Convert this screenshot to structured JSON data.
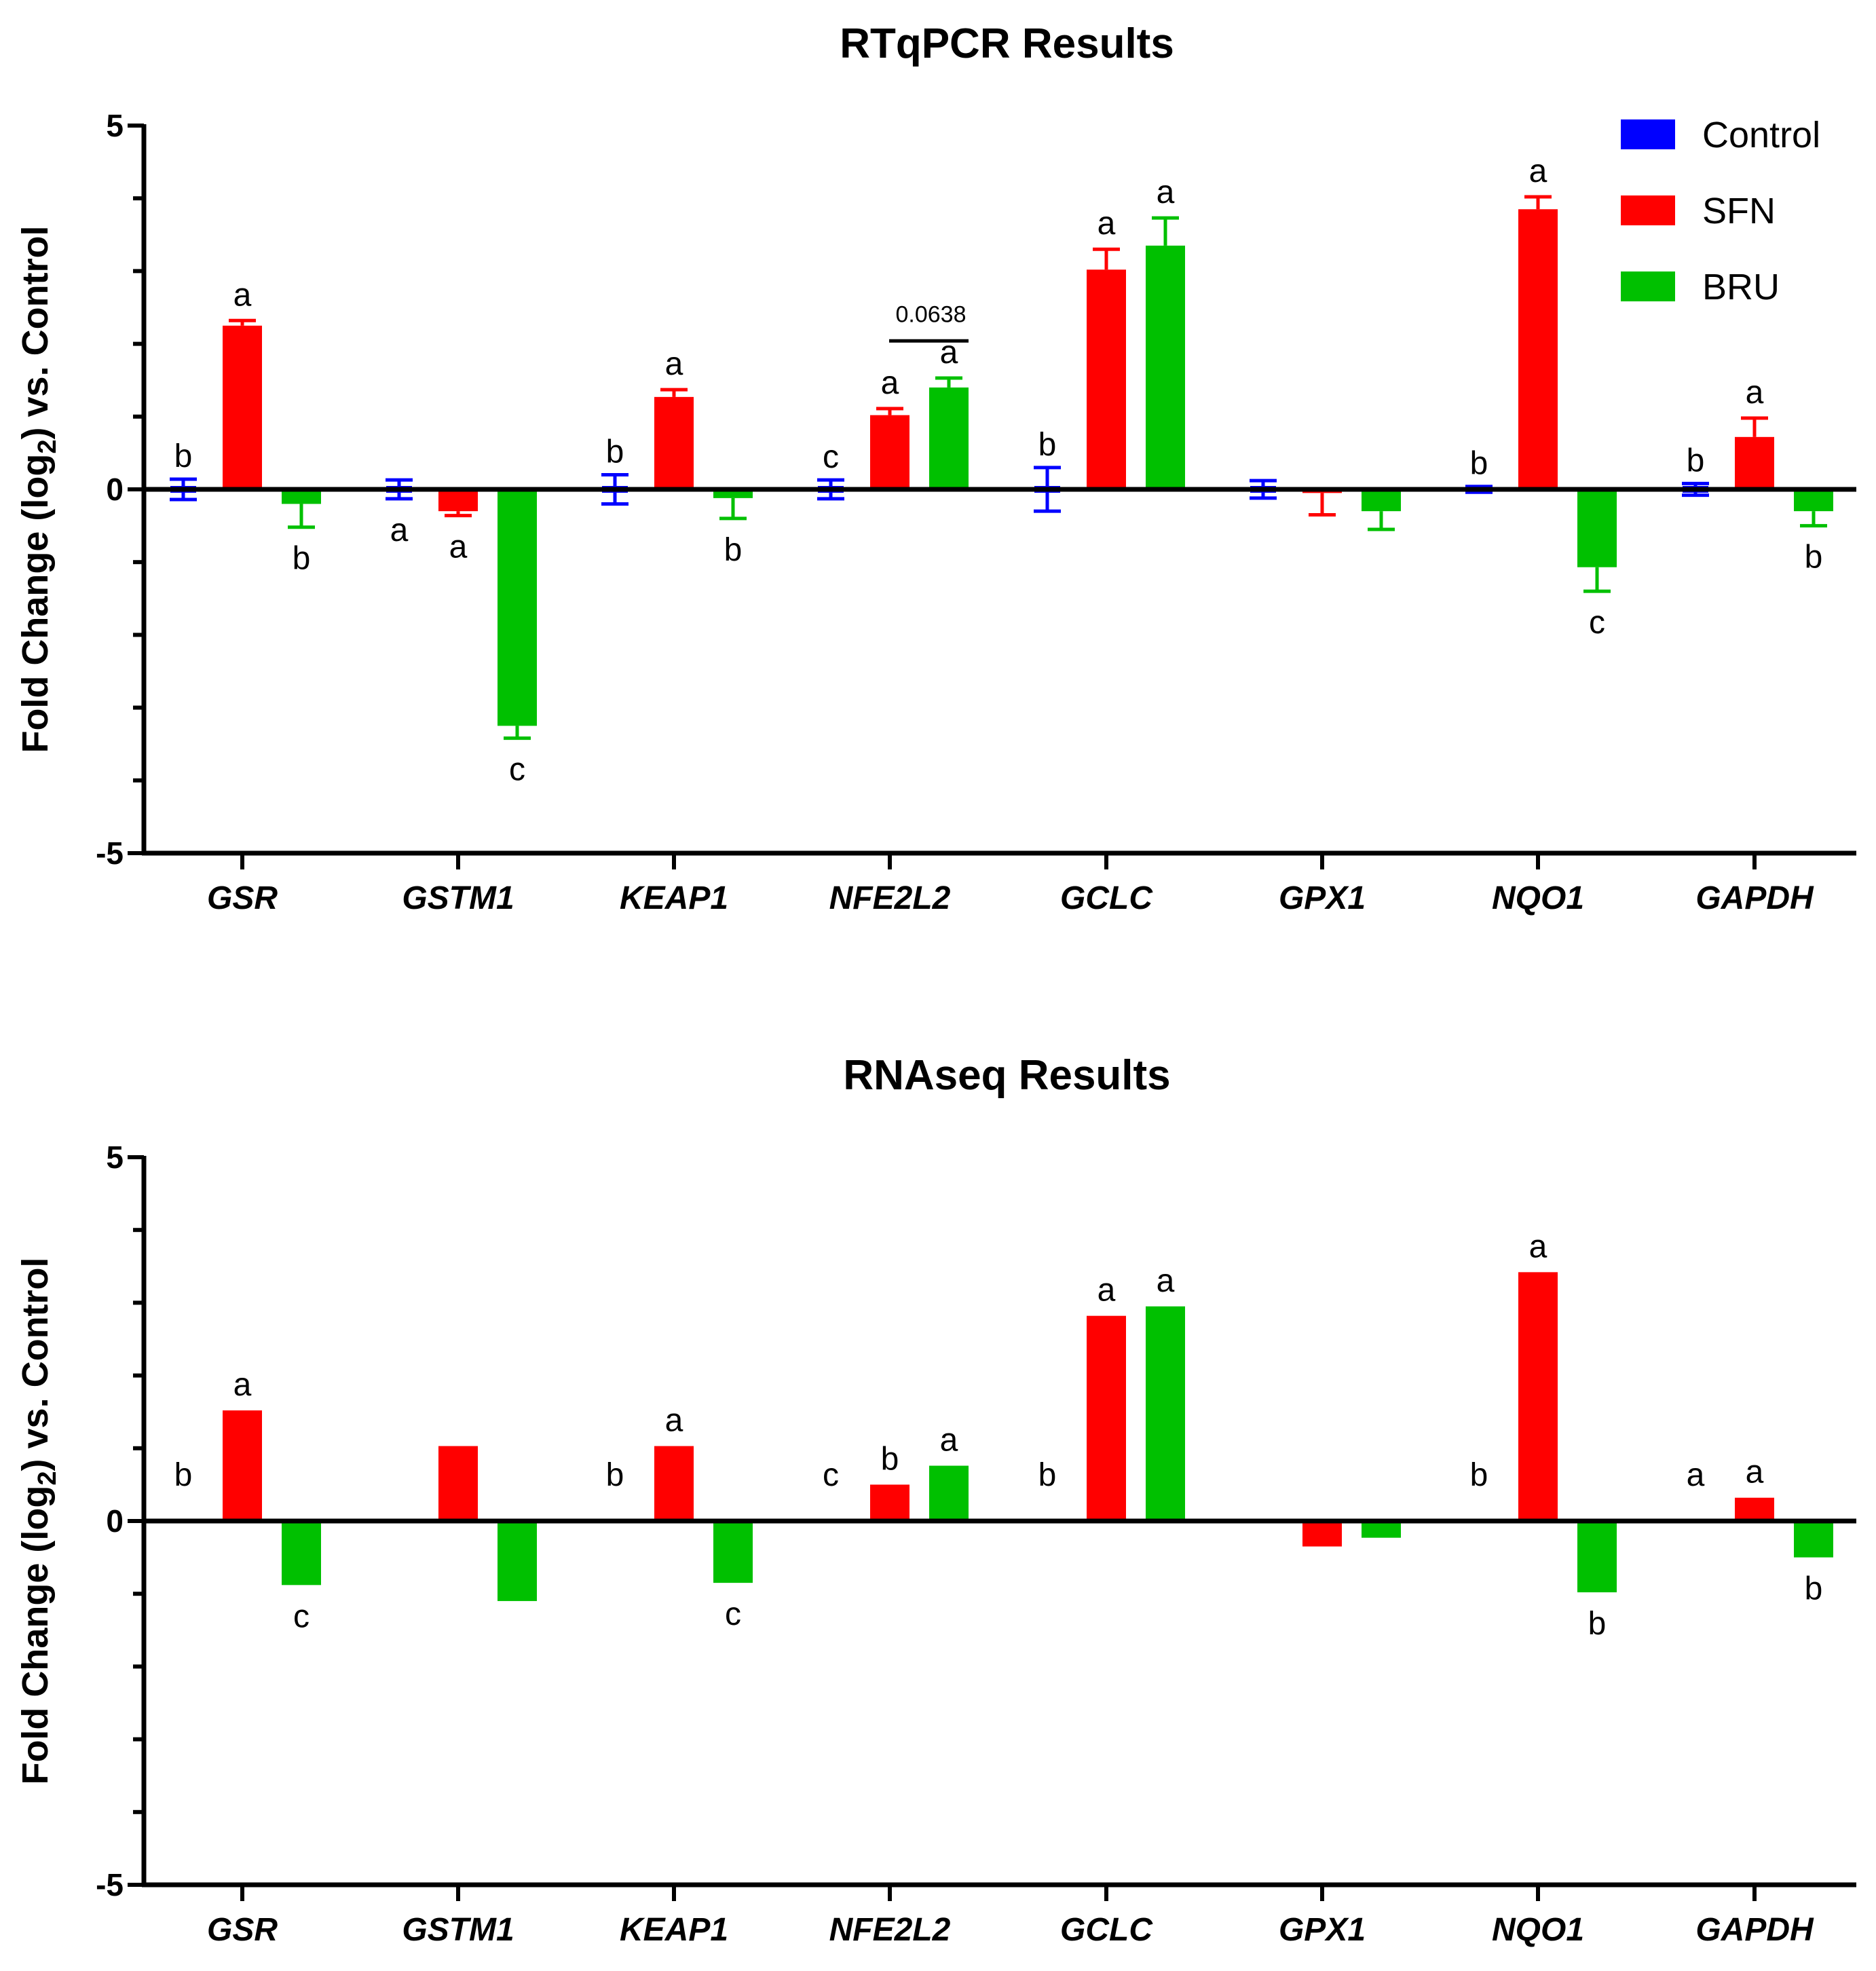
{
  "chart_data": [
    {
      "type": "bar",
      "title": "RTqPCR Results",
      "ylabel": "Fold Change (log₂) vs. Control",
      "xlabel": "",
      "ylim": [
        -5,
        5
      ],
      "ytick_labels": [
        "5",
        "0",
        "-5"
      ],
      "categories": [
        "GSR",
        "GSTM1",
        "KEAP1",
        "NFE2L2",
        "GCLC",
        "GPX1",
        "NQO1",
        "GAPDH"
      ],
      "series": [
        {
          "name": "Control",
          "color": "#0000ff",
          "values": [
            0.0,
            0.0,
            0.0,
            0.0,
            0.0,
            0.0,
            0.0,
            0.0
          ],
          "errors": [
            0.14,
            0.13,
            0.2,
            0.13,
            0.3,
            0.12,
            0.04,
            0.08
          ],
          "letters": [
            "b",
            "a",
            "b",
            "c",
            "b",
            "",
            "b",
            "b"
          ]
        },
        {
          "name": "SFN",
          "color": "#ff0000",
          "values": [
            2.25,
            -0.3,
            1.27,
            1.02,
            3.02,
            -0.05,
            3.85,
            0.72
          ],
          "errors": [
            0.07,
            0.06,
            0.1,
            0.09,
            0.28,
            0.3,
            0.17,
            0.26
          ],
          "letters": [
            "a",
            "a",
            "a",
            "a",
            "a",
            "",
            "a",
            "a"
          ]
        },
        {
          "name": "BRU",
          "color": "#00c000",
          "values": [
            -0.2,
            -3.25,
            -0.12,
            1.4,
            3.35,
            -0.3,
            -1.07,
            -0.3
          ],
          "errors": [
            0.32,
            0.17,
            0.28,
            0.13,
            0.38,
            0.25,
            0.33,
            0.2
          ],
          "letters": [
            "b",
            "c",
            "b",
            "a",
            "a",
            "",
            "c",
            "b"
          ]
        }
      ],
      "annotation": {
        "category": "NFE2L2",
        "text": "0.0638"
      },
      "legend": [
        "Control",
        "SFN",
        "BRU"
      ],
      "legend_position": "top-right"
    },
    {
      "type": "bar",
      "title": "RNAseq Results",
      "ylabel": "Fold Change (log₂) vs. Control",
      "xlabel": "",
      "ylim": [
        -5,
        5
      ],
      "ytick_labels": [
        "5",
        "0",
        "-5"
      ],
      "categories": [
        "GSR",
        "GSTM1",
        "KEAP1",
        "NFE2L2",
        "GCLC",
        "GPX1",
        "NQO1",
        "GAPDH"
      ],
      "series": [
        {
          "name": "Control",
          "color": "#0000ff",
          "values": [
            0,
            0,
            0,
            0,
            0,
            0,
            0,
            0
          ],
          "letters": [
            "b",
            "",
            "b",
            "c",
            "b",
            "",
            "b",
            "a"
          ]
        },
        {
          "name": "SFN",
          "color": "#ff0000",
          "values": [
            1.52,
            1.03,
            1.03,
            0.5,
            2.82,
            -0.35,
            3.42,
            0.32
          ],
          "letters": [
            "a",
            "",
            "a",
            "b",
            "a",
            "",
            "a",
            "a"
          ]
        },
        {
          "name": "BRU",
          "color": "#00c000",
          "values": [
            -0.88,
            -1.1,
            -0.85,
            0.76,
            2.95,
            -0.23,
            -0.98,
            -0.5
          ],
          "letters": [
            "c",
            "",
            "c",
            "a",
            "a",
            "",
            "b",
            "b"
          ]
        }
      ]
    }
  ]
}
